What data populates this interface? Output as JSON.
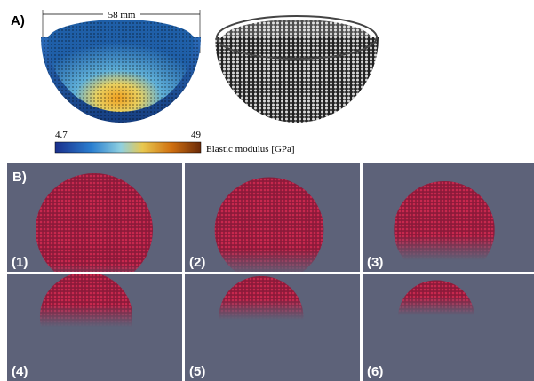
{
  "panel_a": {
    "label": "A)",
    "dimension": "58 mm",
    "colorbar": {
      "min": 4.7,
      "max": 49,
      "label": "Elastic modulus [GPa]"
    }
  },
  "panel_b": {
    "label": "B)",
    "steps": [
      "(1)",
      "(2)",
      "(3)",
      "(4)",
      "(5)",
      "(6)"
    ]
  }
}
